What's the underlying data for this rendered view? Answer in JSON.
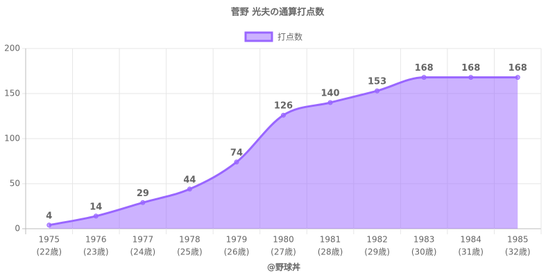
{
  "chart_data": {
    "type": "line",
    "title": "菅野 光夫の通算打点数",
    "x_label": "@野球丼",
    "categories": [
      [
        "1975",
        "(22歳)"
      ],
      [
        "1976",
        "(23歳)"
      ],
      [
        "1977",
        "(24歳)"
      ],
      [
        "1978",
        "(25歳)"
      ],
      [
        "1979",
        "(26歳)"
      ],
      [
        "1980",
        "(27歳)"
      ],
      [
        "1981",
        "(28歳)"
      ],
      [
        "1982",
        "(29歳)"
      ],
      [
        "1983",
        "(30歳)"
      ],
      [
        "1984",
        "(31歳)"
      ],
      [
        "1985",
        "(32歳)"
      ]
    ],
    "series": [
      {
        "name": "打点数",
        "color": "#9966ff",
        "values": [
          4,
          14,
          29,
          44,
          74,
          126,
          140,
          153,
          168,
          168,
          168
        ]
      }
    ],
    "ylim": [
      0,
      200
    ],
    "yticks": [
      0,
      50,
      100,
      150,
      200
    ],
    "grid": true,
    "fill": true,
    "legend": "top"
  }
}
